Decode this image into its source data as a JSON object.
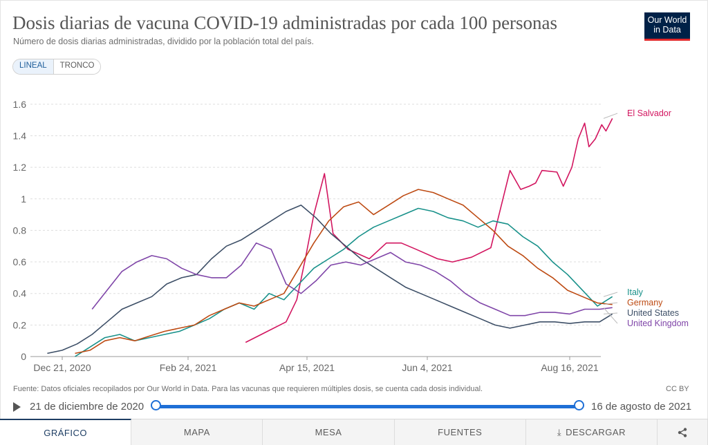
{
  "header": {
    "title": "Dosis diarias de vacuna COVID-19 administradas por cada 100 personas",
    "subtitle": "Número de dosis diarias administradas, dividido por la población total del país.",
    "logo_line1": "Our World",
    "logo_line2": "in Data"
  },
  "scale_toggle": {
    "linear_label": "LINEAL",
    "log_label": "TRONCO",
    "selected": "LINEAL"
  },
  "footer": {
    "source": "Fuente: Datos oficiales recopilados por Our World in Data. Para las vacunas que requieren múltiples dosis, se cuenta cada dosis individual.",
    "license": "CC BY"
  },
  "timeline": {
    "start_label": "21 de diciembre de 2020",
    "end_label": "16 de agosto de 2021",
    "play_icon": "play-icon"
  },
  "tabs": [
    {
      "label": "GRÁFICO",
      "active": true
    },
    {
      "label": "MAPA",
      "active": false
    },
    {
      "label": "MESA",
      "active": false
    },
    {
      "label": "FUENTES",
      "active": false
    },
    {
      "label": "DESCARGAR",
      "active": false,
      "icon": "download-icon"
    }
  ],
  "share_icon": "share-icon",
  "colors": {
    "el_salvador": "#d2155f",
    "italy": "#18918a",
    "germany": "#bd4a12",
    "united_states": "#3c4e66",
    "united_kingdom": "#7f45a8",
    "accent": "#1e6fd6"
  },
  "chart_data": {
    "type": "line",
    "title": "Dosis diarias de vacuna COVID-19 administradas por cada 100 personas",
    "xlabel": "",
    "ylabel": "",
    "x_ticks": [
      "Dec 21, 2020",
      "Feb 24, 2021",
      "Apr 15, 2021",
      "Jun 4, 2021",
      "Aug 16, 2021"
    ],
    "y_ticks": [
      "0",
      "0.2",
      "0.4",
      "0.6",
      "0.8",
      "1",
      "1.2",
      "1.4",
      "1.6"
    ],
    "ylim": [
      0,
      1.7
    ],
    "grid": true,
    "legend_placement": "right",
    "series": [
      {
        "name": "El Salvador",
        "color": "#d2155f",
        "points": [
          [
            "2021-03-17",
            0.09
          ],
          [
            "2021-04-05",
            0.22
          ],
          [
            "2021-04-10",
            0.36
          ],
          [
            "2021-04-14",
            0.62
          ],
          [
            "2021-04-18",
            0.9
          ],
          [
            "2021-04-23",
            1.16
          ],
          [
            "2021-04-27",
            0.78
          ],
          [
            "2021-05-04",
            0.68
          ],
          [
            "2021-05-14",
            0.62
          ],
          [
            "2021-05-22",
            0.72
          ],
          [
            "2021-05-29",
            0.72
          ],
          [
            "2021-06-05",
            0.68
          ],
          [
            "2021-06-15",
            0.62
          ],
          [
            "2021-06-22",
            0.6
          ],
          [
            "2021-07-01",
            0.63
          ],
          [
            "2021-07-10",
            0.69
          ],
          [
            "2021-07-19",
            1.18
          ],
          [
            "2021-07-24",
            1.06
          ],
          [
            "2021-07-28",
            1.08
          ],
          [
            "2021-07-31",
            1.1
          ],
          [
            "2021-08-03",
            1.18
          ],
          [
            "2021-08-10",
            1.17
          ],
          [
            "2021-08-13",
            1.08
          ],
          [
            "2021-08-17",
            1.2
          ],
          [
            "2021-08-20",
            1.38
          ],
          [
            "2021-08-23",
            1.48
          ],
          [
            "2021-08-25",
            1.33
          ],
          [
            "2021-08-28",
            1.38
          ],
          [
            "2021-08-31",
            1.47
          ],
          [
            "2021-09-02",
            1.43
          ],
          [
            "2021-09-05",
            1.51
          ]
        ]
      },
      {
        "name": "Italy",
        "color": "#18918a",
        "points": [
          [
            "2020-12-27",
            0.0
          ],
          [
            "2021-01-03",
            0.06
          ],
          [
            "2021-01-10",
            0.12
          ],
          [
            "2021-01-17",
            0.14
          ],
          [
            "2021-01-24",
            0.1
          ],
          [
            "2021-01-31",
            0.12
          ],
          [
            "2021-02-07",
            0.14
          ],
          [
            "2021-02-14",
            0.16
          ],
          [
            "2021-02-21",
            0.2
          ],
          [
            "2021-02-28",
            0.24
          ],
          [
            "2021-03-07",
            0.3
          ],
          [
            "2021-03-14",
            0.34
          ],
          [
            "2021-03-21",
            0.3
          ],
          [
            "2021-03-28",
            0.4
          ],
          [
            "2021-04-04",
            0.36
          ],
          [
            "2021-04-11",
            0.46
          ],
          [
            "2021-04-18",
            0.56
          ],
          [
            "2021-04-25",
            0.62
          ],
          [
            "2021-05-02",
            0.68
          ],
          [
            "2021-05-09",
            0.76
          ],
          [
            "2021-05-16",
            0.82
          ],
          [
            "2021-05-23",
            0.86
          ],
          [
            "2021-05-30",
            0.9
          ],
          [
            "2021-06-06",
            0.94
          ],
          [
            "2021-06-13",
            0.92
          ],
          [
            "2021-06-20",
            0.88
          ],
          [
            "2021-06-27",
            0.86
          ],
          [
            "2021-07-04",
            0.82
          ],
          [
            "2021-07-11",
            0.86
          ],
          [
            "2021-07-18",
            0.84
          ],
          [
            "2021-07-25",
            0.76
          ],
          [
            "2021-08-01",
            0.7
          ],
          [
            "2021-08-08",
            0.6
          ],
          [
            "2021-08-15",
            0.52
          ],
          [
            "2021-08-22",
            0.42
          ],
          [
            "2021-08-29",
            0.32
          ],
          [
            "2021-09-05",
            0.38
          ]
        ]
      },
      {
        "name": "Germany",
        "color": "#bd4a12",
        "points": [
          [
            "2020-12-27",
            0.02
          ],
          [
            "2021-01-03",
            0.04
          ],
          [
            "2021-01-10",
            0.1
          ],
          [
            "2021-01-17",
            0.12
          ],
          [
            "2021-01-24",
            0.1
          ],
          [
            "2021-01-31",
            0.13
          ],
          [
            "2021-02-07",
            0.16
          ],
          [
            "2021-02-14",
            0.18
          ],
          [
            "2021-02-21",
            0.2
          ],
          [
            "2021-02-28",
            0.26
          ],
          [
            "2021-03-07",
            0.3
          ],
          [
            "2021-03-14",
            0.34
          ],
          [
            "2021-03-21",
            0.32
          ],
          [
            "2021-03-28",
            0.36
          ],
          [
            "2021-04-04",
            0.4
          ],
          [
            "2021-04-11",
            0.56
          ],
          [
            "2021-04-18",
            0.72
          ],
          [
            "2021-04-25",
            0.86
          ],
          [
            "2021-05-02",
            0.95
          ],
          [
            "2021-05-09",
            0.98
          ],
          [
            "2021-05-16",
            0.9
          ],
          [
            "2021-05-23",
            0.96
          ],
          [
            "2021-05-30",
            1.02
          ],
          [
            "2021-06-06",
            1.06
          ],
          [
            "2021-06-13",
            1.04
          ],
          [
            "2021-06-20",
            1.0
          ],
          [
            "2021-06-27",
            0.96
          ],
          [
            "2021-07-04",
            0.88
          ],
          [
            "2021-07-11",
            0.8
          ],
          [
            "2021-07-18",
            0.7
          ],
          [
            "2021-07-25",
            0.64
          ],
          [
            "2021-08-01",
            0.56
          ],
          [
            "2021-08-08",
            0.5
          ],
          [
            "2021-08-15",
            0.42
          ],
          [
            "2021-08-22",
            0.38
          ],
          [
            "2021-08-29",
            0.34
          ],
          [
            "2021-09-05",
            0.33
          ]
        ]
      },
      {
        "name": "United States",
        "color": "#3c4e66",
        "points": [
          [
            "2020-12-14",
            0.02
          ],
          [
            "2020-12-21",
            0.04
          ],
          [
            "2020-12-28",
            0.08
          ],
          [
            "2021-01-04",
            0.14
          ],
          [
            "2021-01-11",
            0.22
          ],
          [
            "2021-01-18",
            0.3
          ],
          [
            "2021-01-25",
            0.34
          ],
          [
            "2021-02-01",
            0.38
          ],
          [
            "2021-02-08",
            0.46
          ],
          [
            "2021-02-15",
            0.5
          ],
          [
            "2021-02-22",
            0.52
          ],
          [
            "2021-03-01",
            0.62
          ],
          [
            "2021-03-08",
            0.7
          ],
          [
            "2021-03-15",
            0.74
          ],
          [
            "2021-03-22",
            0.8
          ],
          [
            "2021-03-29",
            0.86
          ],
          [
            "2021-04-05",
            0.92
          ],
          [
            "2021-04-12",
            0.96
          ],
          [
            "2021-04-19",
            0.88
          ],
          [
            "2021-04-26",
            0.78
          ],
          [
            "2021-05-03",
            0.7
          ],
          [
            "2021-05-10",
            0.62
          ],
          [
            "2021-05-17",
            0.56
          ],
          [
            "2021-05-24",
            0.5
          ],
          [
            "2021-05-31",
            0.44
          ],
          [
            "2021-06-07",
            0.4
          ],
          [
            "2021-06-14",
            0.36
          ],
          [
            "2021-06-21",
            0.32
          ],
          [
            "2021-06-28",
            0.28
          ],
          [
            "2021-07-05",
            0.24
          ],
          [
            "2021-07-12",
            0.2
          ],
          [
            "2021-07-19",
            0.18
          ],
          [
            "2021-07-26",
            0.2
          ],
          [
            "2021-08-02",
            0.22
          ],
          [
            "2021-08-09",
            0.22
          ],
          [
            "2021-08-16",
            0.21
          ],
          [
            "2021-08-23",
            0.22
          ],
          [
            "2021-08-30",
            0.22
          ],
          [
            "2021-09-05",
            0.27
          ]
        ]
      },
      {
        "name": "United Kingdom",
        "color": "#7f45a8",
        "points": [
          [
            "2021-01-04",
            0.3
          ],
          [
            "2021-01-11",
            0.42
          ],
          [
            "2021-01-18",
            0.54
          ],
          [
            "2021-01-25",
            0.6
          ],
          [
            "2021-02-01",
            0.64
          ],
          [
            "2021-02-08",
            0.62
          ],
          [
            "2021-02-15",
            0.56
          ],
          [
            "2021-02-22",
            0.52
          ],
          [
            "2021-03-01",
            0.5
          ],
          [
            "2021-03-08",
            0.5
          ],
          [
            "2021-03-15",
            0.58
          ],
          [
            "2021-03-22",
            0.72
          ],
          [
            "2021-03-29",
            0.68
          ],
          [
            "2021-04-05",
            0.46
          ],
          [
            "2021-04-12",
            0.4
          ],
          [
            "2021-04-19",
            0.48
          ],
          [
            "2021-04-26",
            0.58
          ],
          [
            "2021-05-03",
            0.6
          ],
          [
            "2021-05-10",
            0.58
          ],
          [
            "2021-05-17",
            0.62
          ],
          [
            "2021-05-24",
            0.66
          ],
          [
            "2021-05-31",
            0.6
          ],
          [
            "2021-06-07",
            0.58
          ],
          [
            "2021-06-14",
            0.54
          ],
          [
            "2021-06-21",
            0.48
          ],
          [
            "2021-06-28",
            0.4
          ],
          [
            "2021-07-05",
            0.34
          ],
          [
            "2021-07-12",
            0.3
          ],
          [
            "2021-07-19",
            0.26
          ],
          [
            "2021-07-26",
            0.26
          ],
          [
            "2021-08-02",
            0.28
          ],
          [
            "2021-08-09",
            0.28
          ],
          [
            "2021-08-16",
            0.27
          ],
          [
            "2021-08-23",
            0.3
          ],
          [
            "2021-08-30",
            0.3
          ],
          [
            "2021-09-05",
            0.31
          ]
        ]
      }
    ]
  }
}
